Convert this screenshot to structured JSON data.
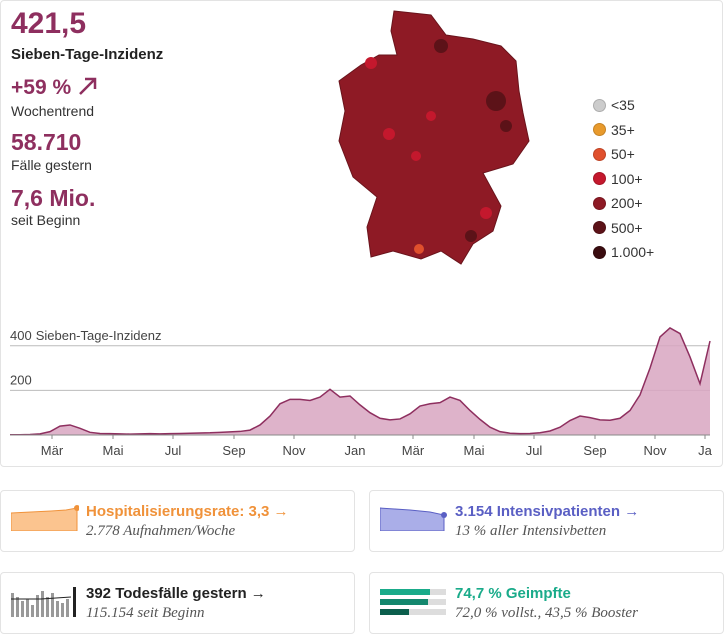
{
  "stats": {
    "incidence": "421,5",
    "incidence_label": "Sieben-Tage-Inzidenz",
    "trend": "+59 %",
    "trend_label": "Wochentrend",
    "cases": "58.710",
    "cases_label": "Fälle gestern",
    "total": "7,6 Mio.",
    "total_label": "seit Beginn"
  },
  "legend": [
    {
      "label": "<35",
      "color": "#cccccc"
    },
    {
      "label": "35+",
      "color": "#e89a2c"
    },
    {
      "label": "50+",
      "color": "#e0502d"
    },
    {
      "label": "100+",
      "color": "#c4182d"
    },
    {
      "label": "200+",
      "color": "#8e1a25"
    },
    {
      "label": "500+",
      "color": "#5c1218"
    },
    {
      "label": "1.000+",
      "color": "#3a0c10"
    }
  ],
  "chart_data": {
    "type": "area",
    "y_label": "Sieben-Tage-Inzidenz",
    "color": "#d8a6c1",
    "line_color": "#8e2f5f",
    "values": [
      1,
      1,
      2,
      5,
      15,
      40,
      45,
      30,
      12,
      7,
      6,
      5,
      4,
      5,
      6,
      5,
      6,
      7,
      8,
      9,
      10,
      12,
      14,
      16,
      22,
      45,
      85,
      140,
      160,
      160,
      155,
      170,
      205,
      170,
      175,
      135,
      100,
      75,
      68,
      72,
      95,
      130,
      140,
      145,
      170,
      155,
      110,
      70,
      35,
      15,
      8,
      6,
      7,
      10,
      18,
      35,
      65,
      85,
      78,
      68,
      66,
      75,
      110,
      180,
      300,
      440,
      480,
      455,
      350,
      230,
      421.5
    ],
    "xlim": [
      0,
      70
    ],
    "ylim": [
      0,
      500
    ],
    "yticks": [
      200,
      400
    ],
    "grid": true,
    "xticks": [
      {
        "value": 4.2,
        "label": "Mär"
      },
      {
        "value": 10.3,
        "label": "Mai"
      },
      {
        "value": 16.3,
        "label": "Jul"
      },
      {
        "value": 22.4,
        "label": "Sep"
      },
      {
        "value": 28.4,
        "label": "Nov"
      },
      {
        "value": 34.5,
        "label": "Jan"
      },
      {
        "value": 40.3,
        "label": "Mär"
      },
      {
        "value": 46.4,
        "label": "Mai"
      },
      {
        "value": 52.4,
        "label": "Jul"
      },
      {
        "value": 58.5,
        "label": "Sep"
      },
      {
        "value": 64.5,
        "label": "Nov"
      },
      {
        "value": 69.5,
        "label": "Ja"
      }
    ]
  },
  "cards": [
    {
      "title": "Hospitalisierungsrate: 3,3 →",
      "sub": "2.778 Aufnahmen/Woche"
    },
    {
      "title": "3.154 Intensivpatienten →",
      "sub": "13 % aller Intensivbetten"
    },
    {
      "title": "392 Todesfälle gestern →",
      "sub": "115.154 seit Beginn"
    },
    {
      "title": "74,7 % Geimpfte",
      "sub": "72,0 % vollst., 43,5 % Booster"
    }
  ]
}
